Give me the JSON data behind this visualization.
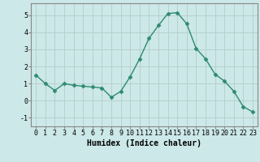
{
  "x": [
    0,
    1,
    2,
    3,
    4,
    5,
    6,
    7,
    8,
    9,
    10,
    11,
    12,
    13,
    14,
    15,
    16,
    17,
    18,
    19,
    20,
    21,
    22,
    23
  ],
  "y": [
    1.5,
    1.0,
    0.6,
    1.0,
    0.9,
    0.85,
    0.8,
    0.75,
    0.2,
    0.55,
    1.4,
    2.45,
    3.65,
    4.4,
    5.1,
    5.15,
    4.5,
    3.05,
    2.45,
    1.55,
    1.15,
    0.55,
    -0.35,
    -0.65
  ],
  "line_color": "#2e8b70",
  "marker": "D",
  "markersize": 2.5,
  "linewidth": 1.0,
  "bg_color": "#cce8e8",
  "grid_color": "#b8d0d0",
  "xlabel": "Humidex (Indice chaleur)",
  "xlabel_fontsize": 7,
  "ylabel_ticks": [
    -1,
    0,
    1,
    2,
    3,
    4,
    5
  ],
  "xtick_labels": [
    "0",
    "1",
    "2",
    "3",
    "4",
    "5",
    "6",
    "7",
    "8",
    "9",
    "10",
    "11",
    "12",
    "13",
    "14",
    "15",
    "16",
    "17",
    "18",
    "19",
    "20",
    "21",
    "22",
    "23"
  ],
  "xlim": [
    -0.5,
    23.5
  ],
  "ylim": [
    -1.5,
    5.7
  ],
  "tick_fontsize": 6,
  "spine_color": "#888888"
}
